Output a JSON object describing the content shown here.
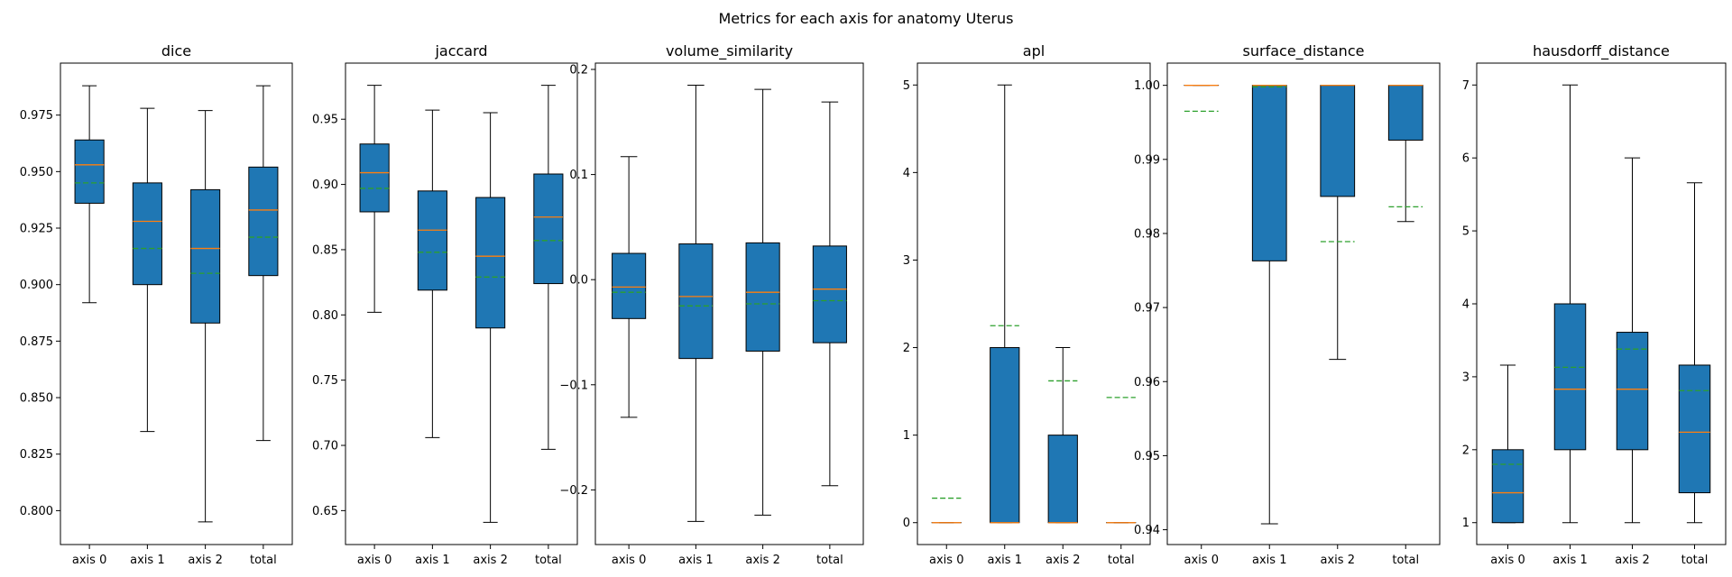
{
  "figure_title": "Metrics for each axis for anatomy Uterus",
  "colors": {
    "box_fill": "#1f77b4",
    "median": "#ff7f0e",
    "mean": "#2ca02c",
    "line": "#000000"
  },
  "chart_data": [
    {
      "type": "box",
      "title": "dice",
      "categories": [
        "axis 0",
        "axis 1",
        "axis 2",
        "total"
      ],
      "ylim": [
        0.785,
        0.998
      ],
      "yticks": [
        0.8,
        0.825,
        0.85,
        0.875,
        0.9,
        0.925,
        0.95,
        0.975
      ],
      "ytick_labels": [
        "0.800",
        "0.825",
        "0.850",
        "0.875",
        "0.900",
        "0.925",
        "0.950",
        "0.975"
      ],
      "boxes": [
        {
          "whislo": 0.892,
          "q1": 0.936,
          "med": 0.953,
          "q3": 0.964,
          "whishi": 0.988,
          "mean": 0.945
        },
        {
          "whislo": 0.835,
          "q1": 0.9,
          "med": 0.928,
          "q3": 0.945,
          "whishi": 0.978,
          "mean": 0.916
        },
        {
          "whislo": 0.795,
          "q1": 0.883,
          "med": 0.916,
          "q3": 0.942,
          "whishi": 0.977,
          "mean": 0.905
        },
        {
          "whislo": 0.831,
          "q1": 0.904,
          "med": 0.933,
          "q3": 0.952,
          "whishi": 0.988,
          "mean": 0.921
        }
      ]
    },
    {
      "type": "box",
      "title": "jaccard",
      "categories": [
        "axis 0",
        "axis 1",
        "axis 2",
        "total"
      ],
      "ylim": [
        0.624,
        0.993
      ],
      "yticks": [
        0.65,
        0.7,
        0.75,
        0.8,
        0.85,
        0.9,
        0.95
      ],
      "ytick_labels": [
        "0.65",
        "0.70",
        "0.75",
        "0.80",
        "0.85",
        "0.90",
        "0.95"
      ],
      "boxes": [
        {
          "whislo": 0.802,
          "q1": 0.879,
          "med": 0.909,
          "q3": 0.931,
          "whishi": 0.976,
          "mean": 0.897
        },
        {
          "whislo": 0.706,
          "q1": 0.819,
          "med": 0.865,
          "q3": 0.895,
          "whishi": 0.957,
          "mean": 0.848
        },
        {
          "whislo": 0.641,
          "q1": 0.79,
          "med": 0.845,
          "q3": 0.89,
          "whishi": 0.955,
          "mean": 0.829
        },
        {
          "whislo": 0.697,
          "q1": 0.824,
          "med": 0.875,
          "q3": 0.908,
          "whishi": 0.976,
          "mean": 0.857
        }
      ]
    },
    {
      "type": "box",
      "title": "volume_similarity",
      "categories": [
        "axis 0",
        "axis 1",
        "axis 2",
        "total"
      ],
      "ylim": [
        -0.252,
        0.206
      ],
      "yticks": [
        -0.2,
        -0.1,
        0.0,
        0.1,
        0.2
      ],
      "ytick_labels": [
        "−0.2",
        "−0.1",
        "0.0",
        "0.1",
        "0.2"
      ],
      "boxes": [
        {
          "whislo": -0.131,
          "q1": -0.037,
          "med": -0.007,
          "q3": 0.025,
          "whishi": 0.117,
          "mean": -0.012
        },
        {
          "whislo": -0.23,
          "q1": -0.075,
          "med": -0.016,
          "q3": 0.034,
          "whishi": 0.185,
          "mean": -0.025
        },
        {
          "whislo": -0.224,
          "q1": -0.068,
          "med": -0.012,
          "q3": 0.035,
          "whishi": 0.181,
          "mean": -0.023
        },
        {
          "whislo": -0.196,
          "q1": -0.06,
          "med": -0.009,
          "q3": 0.032,
          "whishi": 0.169,
          "mean": -0.02
        }
      ]
    },
    {
      "type": "box",
      "title": "apl",
      "categories": [
        "axis 0",
        "axis 1",
        "axis 2",
        "total"
      ],
      "ylim": [
        -0.25,
        5.25
      ],
      "yticks": [
        0,
        1,
        2,
        3,
        4,
        5
      ],
      "ytick_labels": [
        "0",
        "1",
        "2",
        "3",
        "4",
        "5"
      ],
      "boxes": [
        {
          "whislo": 0,
          "q1": 0,
          "med": 0,
          "q3": 0,
          "whishi": 0,
          "mean": 0.28
        },
        {
          "whislo": 0,
          "q1": 0,
          "med": 0,
          "q3": 2,
          "whishi": 5,
          "mean": 2.25
        },
        {
          "whislo": 0,
          "q1": 0,
          "med": 0,
          "q3": 1,
          "whishi": 2,
          "mean": 1.62
        },
        {
          "whislo": 0,
          "q1": 0,
          "med": 0,
          "q3": 0,
          "whishi": 0,
          "mean": 1.43
        }
      ]
    },
    {
      "type": "box",
      "title": "surface_distance",
      "categories": [
        "axis 0",
        "axis 1",
        "axis 2",
        "total"
      ],
      "ylim": [
        0.938,
        1.003
      ],
      "yticks": [
        0.94,
        0.95,
        0.96,
        0.97,
        0.98,
        0.99,
        1.0
      ],
      "ytick_labels": [
        "0.94",
        "0.95",
        "0.96",
        "0.97",
        "0.98",
        "0.99",
        "1.00"
      ],
      "boxes": [
        {
          "whislo": 1.0,
          "q1": 1.0,
          "med": 1.0,
          "q3": 1.0,
          "whishi": 1.0,
          "mean": 0.9965
        },
        {
          "whislo": 0.9408,
          "q1": 0.9763,
          "med": 1.0,
          "q3": 1.0,
          "whishi": 1.0,
          "mean": 0.9998
        },
        {
          "whislo": 0.963,
          "q1": 0.985,
          "med": 1.0,
          "q3": 1.0,
          "whishi": 1.0,
          "mean": 0.9789
        },
        {
          "whislo": 0.9816,
          "q1": 0.9926,
          "med": 1.0,
          "q3": 1.0,
          "whishi": 1.0,
          "mean": 0.9836
        }
      ]
    },
    {
      "type": "box",
      "title": "hausdorff_distance",
      "categories": [
        "axis 0",
        "axis 1",
        "axis 2",
        "total"
      ],
      "ylim": [
        0.7,
        7.3
      ],
      "yticks": [
        1,
        2,
        3,
        4,
        5,
        6,
        7
      ],
      "ytick_labels": [
        "1",
        "2",
        "3",
        "4",
        "5",
        "6",
        "7"
      ],
      "boxes": [
        {
          "whislo": 1.0,
          "q1": 1.0,
          "med": 1.41,
          "q3": 2.0,
          "whishi": 3.16,
          "mean": 1.8
        },
        {
          "whislo": 1.0,
          "q1": 2.0,
          "med": 2.83,
          "q3": 4.0,
          "whishi": 7.0,
          "mean": 3.13
        },
        {
          "whislo": 1.0,
          "q1": 2.0,
          "med": 2.83,
          "q3": 3.61,
          "whishi": 6.0,
          "mean": 3.38
        },
        {
          "whislo": 1.0,
          "q1": 1.41,
          "med": 2.24,
          "q3": 3.16,
          "whishi": 5.66,
          "mean": 2.81
        }
      ]
    }
  ]
}
